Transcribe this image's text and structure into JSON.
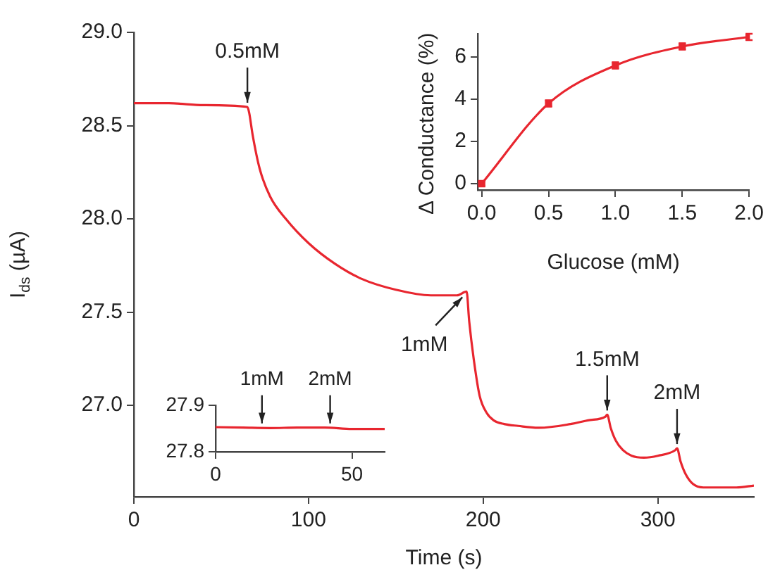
{
  "chart_data": [
    {
      "type": "line",
      "xlabel": "Time (s)",
      "ylabel": "I$_{ds}$ (µA)",
      "xlim": [
        0,
        355
      ],
      "xticks": [
        0,
        100,
        200,
        300
      ],
      "ylim": [
        26.51,
        29.0
      ],
      "yticks": [
        {
          "value": 27,
          "label": "27.0"
        },
        27.5,
        {
          "value": 28,
          "label": "28.0"
        },
        28.5,
        {
          "value": 29,
          "label": "29.0"
        }
      ],
      "grid": false,
      "legend": false,
      "x": [
        0,
        20,
        40,
        65,
        66,
        68,
        72,
        78,
        87,
        100,
        115,
        130,
        150,
        170,
        185,
        190.5,
        192,
        195,
        198,
        202,
        206,
        212,
        220,
        232,
        250,
        260,
        270,
        271,
        273,
        276,
        280,
        285,
        292,
        300,
        310,
        311,
        313,
        316,
        320,
        326,
        335,
        345,
        355
      ],
      "series": [
        {
          "color": "#e8262f",
          "values": [
            28.62,
            28.62,
            28.61,
            28.6,
            28.57,
            28.45,
            28.27,
            28.12,
            28.0,
            27.87,
            27.76,
            27.68,
            27.62,
            27.59,
            27.59,
            27.61,
            27.45,
            27.22,
            27.05,
            26.96,
            26.92,
            26.9,
            26.89,
            26.88,
            26.9,
            26.92,
            26.94,
            26.95,
            26.88,
            26.81,
            26.76,
            26.73,
            26.72,
            26.73,
            26.76,
            26.77,
            26.7,
            26.63,
            26.58,
            26.56,
            26.56,
            26.56,
            26.57
          ]
        }
      ],
      "annotations": [
        {
          "text": "0.5mM",
          "x": 65,
          "y": 28.6
        },
        {
          "text": "1mM",
          "x": 190.5,
          "y": 27.61
        },
        {
          "text": "1.5mM",
          "x": 271,
          "y": 26.95
        },
        {
          "text": "2mM",
          "x": 311,
          "y": 26.77
        }
      ]
    },
    {
      "type": "line",
      "xlabel": "Glucose (mM)",
      "ylabel": "Δ Conductance (%)",
      "xlim": [
        -0.03,
        2.0
      ],
      "xticks": [
        {
          "value": 0,
          "label": "0.0"
        },
        0.5,
        {
          "value": 1,
          "label": "1.0"
        },
        1.5,
        {
          "value": 2,
          "label": "2.0"
        }
      ],
      "ylim": [
        -0.3,
        7.1
      ],
      "yticks": [
        0,
        2,
        4,
        6
      ],
      "grid": false,
      "legend": false,
      "marker": "square",
      "x": [
        0,
        0.5,
        1,
        1.5,
        2
      ],
      "series": [
        {
          "color": "#e8262f",
          "values": [
            0,
            3.8,
            5.6,
            6.5,
            6.95
          ],
          "errors": [
            0.1,
            0.15,
            0.15,
            0.15,
            0.15
          ]
        }
      ]
    },
    {
      "type": "line",
      "xlim": [
        0,
        62
      ],
      "xticks": [
        0,
        50
      ],
      "ylim": [
        27.8,
        27.9
      ],
      "yticks": [
        27.8,
        27.9
      ],
      "grid": false,
      "legend": false,
      "x": [
        0,
        10,
        20,
        30,
        40,
        50,
        62
      ],
      "series": [
        {
          "color": "#e8262f",
          "values": [
            27.853,
            27.852,
            27.851,
            27.852,
            27.852,
            27.849,
            27.849
          ]
        }
      ],
      "annotations": [
        {
          "text": "1mM",
          "x": 17,
          "y": 27.852
        },
        {
          "text": "2mM",
          "x": 42,
          "y": 27.852
        }
      ]
    }
  ]
}
